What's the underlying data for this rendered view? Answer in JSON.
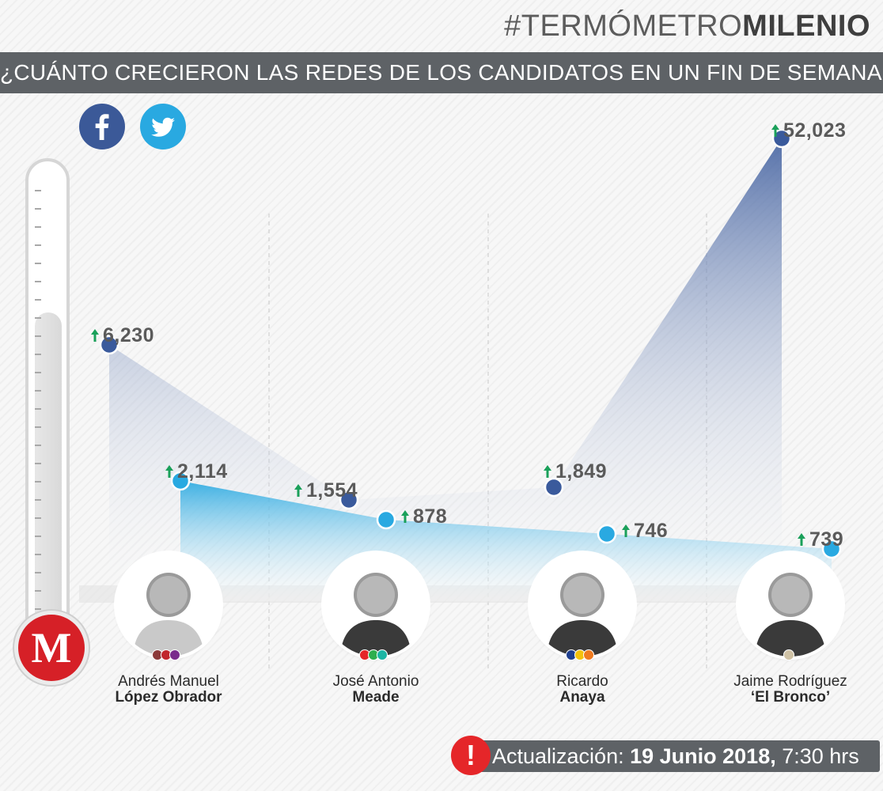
{
  "header": {
    "brand_prefix": "#TERMÓMETRO",
    "brand_bold": "MILENIO",
    "title": "¿CUÁNTO CRECIERON LAS REDES DE LOS CANDIDATOS EN UN FIN DE SEMANA?"
  },
  "social": [
    {
      "name": "facebook-icon",
      "letter": "f",
      "color": "#3b5998"
    },
    {
      "name": "twitter-icon",
      "color": "#29a9e1"
    }
  ],
  "logo_letter": "M",
  "candidates": [
    {
      "first": "Andrés Manuel",
      "last": "López Obrador",
      "party_colors": [
        "#8b3a3a",
        "#c1272d",
        "#7a2c8c"
      ]
    },
    {
      "first": "José Antonio",
      "last": "Meade",
      "party_colors": [
        "#e52629",
        "#2eae4e",
        "#1bb5a4"
      ]
    },
    {
      "first": "Ricardo",
      "last": "Anaya",
      "party_colors": [
        "#1f3f8f",
        "#f4c20d",
        "#f07a1f"
      ]
    },
    {
      "first": "Jaime Rodríguez",
      "last": "‘El Bronco’",
      "party_colors": [
        "#cfc2a5"
      ]
    }
  ],
  "chart_data": {
    "type": "area",
    "categories": [
      "Andrés Manuel López Obrador",
      "José Antonio Meade",
      "Ricardo Anaya",
      "Jaime Rodríguez ‘El Bronco’"
    ],
    "series": [
      {
        "name": "Facebook",
        "color": "#3a5a9c",
        "values": [
          6230,
          1554,
          1849,
          52023
        ],
        "labels": [
          "6,230",
          "1,554",
          "1,849",
          "52,023"
        ]
      },
      {
        "name": "Twitter",
        "color": "#29a9e1",
        "values": [
          2114,
          878,
          746,
          739
        ],
        "labels": [
          "2,114",
          "878",
          "746",
          "739"
        ]
      }
    ],
    "arrow_color": "#1aa05a",
    "title": "¿CUÁNTO CRECIERON LAS REDES DE LOS CANDIDATOS EN UN FIN DE SEMANA?"
  },
  "update": {
    "icon": "!",
    "label": "Actualización:",
    "date": "19 Junio 2018,",
    "time": "7:30 hrs"
  }
}
